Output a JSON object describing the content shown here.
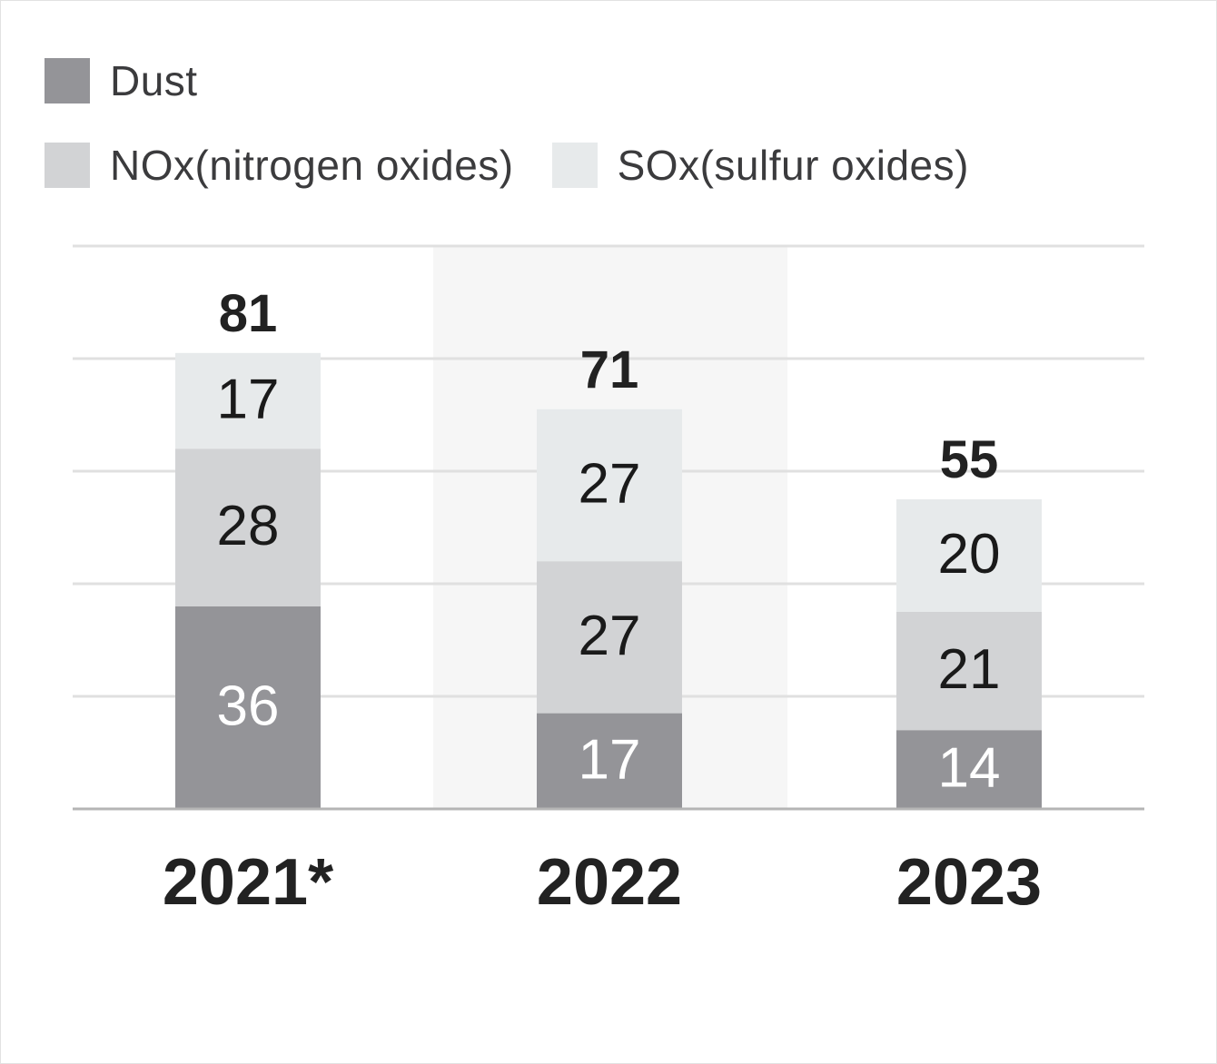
{
  "chart_data": {
    "type": "bar",
    "stacked": true,
    "categories": [
      "2021*",
      "2022",
      "2023"
    ],
    "series": [
      {
        "name": "Dust",
        "values": [
          36,
          17,
          14
        ],
        "color": "#949498",
        "label_color": "#ffffff"
      },
      {
        "name": "NOx(nitrogen oxides)",
        "values": [
          28,
          27,
          21
        ],
        "color": "#d2d3d5",
        "label_color": "#1a1a1a"
      },
      {
        "name": "SOx(sulfur oxides)",
        "values": [
          17,
          27,
          20
        ],
        "color": "#e7eaeb",
        "label_color": "#1a1a1a"
      }
    ],
    "totals": [
      81,
      71,
      55
    ],
    "ylim": [
      0,
      100
    ],
    "grid": true,
    "highlighted_category": "2022",
    "legend_position": "top-left",
    "title": "",
    "xlabel": "",
    "ylabel": ""
  },
  "colors": {
    "grid": "#e0e0e0",
    "axis": "#b5b5b5",
    "highlight_band": "#f6f6f6",
    "total_label": "#222222",
    "category_label": "#222222"
  }
}
